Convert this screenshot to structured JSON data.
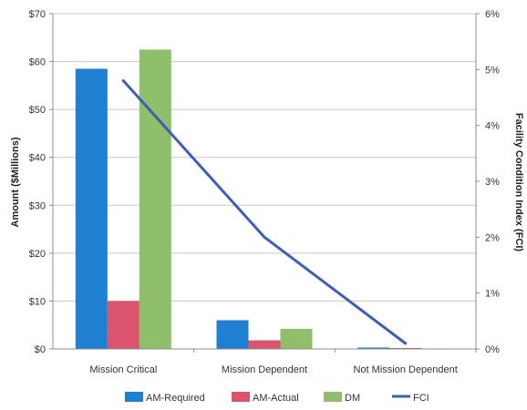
{
  "chart_data": {
    "type": "bar",
    "categories": [
      "Mission Critical",
      "Mission Dependent",
      "Not Mission Dependent"
    ],
    "series": [
      {
        "name": "AM-Required",
        "type": "bar",
        "axis": "left",
        "color": "#1f7fd0",
        "values": [
          58.5,
          6.0,
          0.3
        ]
      },
      {
        "name": "AM-Actual",
        "type": "bar",
        "axis": "left",
        "color": "#d9546c",
        "values": [
          10.0,
          1.8,
          0.2
        ]
      },
      {
        "name": "DM",
        "type": "bar",
        "axis": "left",
        "color": "#8fbf6a",
        "values": [
          62.5,
          4.2,
          0.1
        ]
      },
      {
        "name": "FCI",
        "type": "line",
        "axis": "right",
        "color": "#3f5fb5",
        "values": [
          4.8,
          2.0,
          0.1
        ]
      }
    ],
    "ylabel": "Amount ($Millions)",
    "y2label": "Facility Condition Index (FCI)",
    "ylim": [
      0,
      70
    ],
    "y2lim": [
      0,
      6
    ],
    "yticks": [
      "$0",
      "$10",
      "$20",
      "$30",
      "$40",
      "$50",
      "$60",
      "$70"
    ],
    "y2ticks": [
      "0%",
      "1%",
      "2%",
      "3%",
      "4%",
      "5%",
      "6%"
    ],
    "grid": true,
    "legend": "bottom"
  }
}
